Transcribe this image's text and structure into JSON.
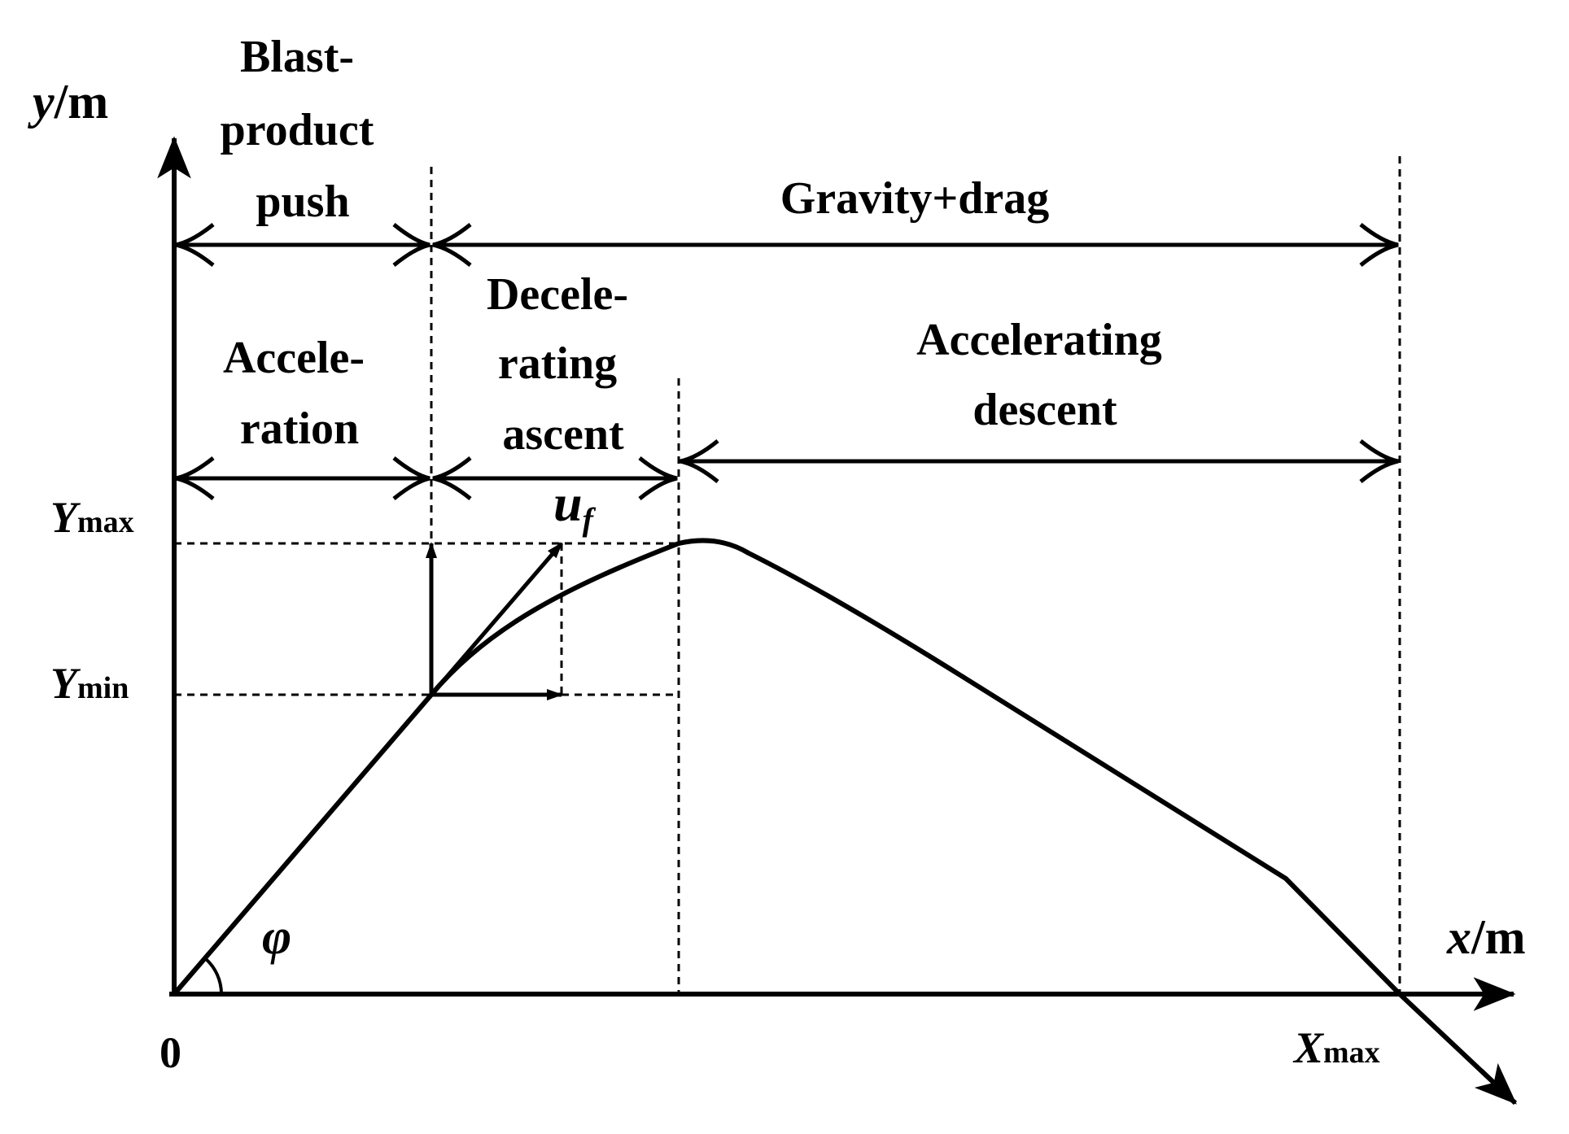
{
  "axes": {
    "y_label_var": "y",
    "y_label_unit": "/m",
    "x_label_var": "x",
    "x_label_unit": "/m",
    "origin": "0"
  },
  "markers": {
    "ymax_var": "Y",
    "ymax_sub": "max",
    "ymin_var": "Y",
    "ymin_sub": "min",
    "xmax_var": "X",
    "xmax_sub": "max",
    "angle": "φ",
    "velocity_var": "u",
    "velocity_sub": "f"
  },
  "phases": {
    "blast_push": [
      "Blast-",
      "product",
      "push"
    ],
    "gravity_drag": "Gravity+drag",
    "acceleration": [
      "Accele-",
      "ration"
    ],
    "decelerating_ascent": [
      "Decele-",
      "rating",
      "ascent"
    ],
    "accelerating_descent": [
      "Accelerating",
      "descent"
    ]
  },
  "colors": {
    "ink": "#000000",
    "background": "#ffffff"
  }
}
